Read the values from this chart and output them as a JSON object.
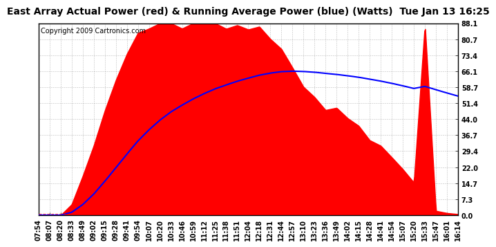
{
  "title": "East Array Actual Power (red) & Running Average Power (blue) (Watts)  Tue Jan 13 16:25",
  "copyright": "Copyright 2009 Cartronics.com",
  "yticks": [
    0.0,
    7.3,
    14.7,
    22.0,
    29.4,
    36.7,
    44.0,
    51.4,
    58.7,
    66.1,
    73.4,
    80.7,
    88.1
  ],
  "ymax": 88.1,
  "xtick_labels": [
    "07:54",
    "08:07",
    "08:20",
    "08:33",
    "08:49",
    "09:02",
    "09:15",
    "09:28",
    "09:41",
    "09:54",
    "10:07",
    "10:20",
    "10:33",
    "10:46",
    "10:59",
    "11:12",
    "11:25",
    "11:38",
    "11:51",
    "12:04",
    "12:18",
    "12:31",
    "12:44",
    "12:57",
    "13:10",
    "13:23",
    "13:36",
    "13:49",
    "14:02",
    "14:15",
    "14:28",
    "14:41",
    "14:54",
    "15:07",
    "15:20",
    "15:33",
    "15:47",
    "16:01",
    "16:14"
  ],
  "fill_color": "#FF0000",
  "line_color": "#0000FF",
  "dashed_color": "#FF0000",
  "background_color": "#FFFFFF",
  "grid_color": "#888888",
  "title_fontsize": 10,
  "copyright_fontsize": 7,
  "tick_fontsize": 7
}
